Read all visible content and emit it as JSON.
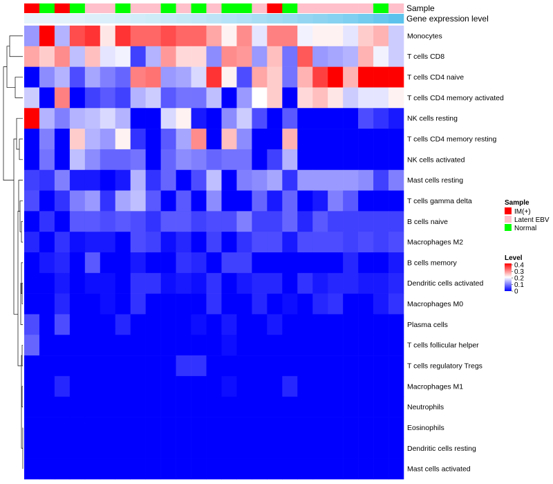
{
  "chart_data": {
    "type": "heatmap",
    "annotation_tracks": {
      "sample_label": "Sample",
      "expression_label": "Gene expression level"
    },
    "sample_annotation": [
      "IM(+)",
      "Normal",
      "IM(+)",
      "Normal",
      "Latent EBV",
      "Latent EBV",
      "Normal",
      "Latent EBV",
      "Latent EBV",
      "Normal",
      "Latent EBV",
      "Normal",
      "Latent EBV",
      "Normal",
      "Normal",
      "Latent EBV",
      "IM(+)",
      "Normal",
      "Latent EBV",
      "Latent EBV",
      "Latent EBV",
      "Latent EBV",
      "Latent EBV",
      "Normal",
      "Latent EBV"
    ],
    "gene_expression_level": [
      0.02,
      0.03,
      0.04,
      0.05,
      0.07,
      0.08,
      0.1,
      0.12,
      0.14,
      0.16,
      0.18,
      0.2,
      0.22,
      0.25,
      0.28,
      0.31,
      0.34,
      0.37,
      0.4,
      0.43,
      0.46,
      0.5,
      0.55,
      0.6,
      0.65
    ],
    "rows": [
      "Monocytes",
      "T cells CD8",
      "T cells CD4 naive",
      "T cells CD4 memory activated",
      "NK cells resting",
      "T cells CD4 memory resting",
      "NK cells activated",
      "Mast cells resting",
      "T cells gamma delta",
      "B cells naive",
      "Macrophages M2",
      "B cells memory",
      "Dendritic cells activated",
      "Macrophages M0",
      "Plasma cells",
      "T cells follicular helper",
      "T cells regulatory  Tregs",
      "Macrophages M1",
      "Neutrophils",
      "Eosinophils",
      "Dendritic cells resting",
      "Mast cells activated"
    ],
    "values": [
      [
        0.12,
        0.4,
        0.14,
        0.34,
        0.36,
        0.22,
        0.36,
        0.32,
        0.32,
        0.34,
        0.32,
        0.32,
        0.27,
        0.21,
        0.29,
        0.18,
        0.3,
        0.3,
        0.19,
        0.21,
        0.21,
        0.18,
        0.24,
        0.26,
        0.16
      ],
      [
        0.27,
        0.24,
        0.29,
        0.15,
        0.25,
        0.18,
        0.19,
        0.05,
        0.14,
        0.28,
        0.23,
        0.23,
        0.11,
        0.29,
        0.28,
        0.12,
        0.25,
        0.09,
        0.33,
        0.12,
        0.13,
        0.14,
        0.26,
        0.19,
        0.16
      ],
      [
        0.0,
        0.11,
        0.14,
        0.06,
        0.13,
        0.1,
        0.08,
        0.3,
        0.31,
        0.12,
        0.13,
        0.17,
        0.36,
        0.21,
        0.06,
        0.27,
        0.24,
        0.09,
        0.26,
        0.35,
        0.4,
        0.26,
        0.4,
        0.4,
        0.4
      ],
      [
        0.16,
        0.0,
        0.3,
        0.0,
        0.05,
        0.07,
        0.05,
        0.14,
        0.16,
        0.07,
        0.09,
        0.09,
        0.15,
        0.0,
        0.12,
        0.2,
        0.24,
        0.0,
        0.23,
        0.25,
        0.22,
        0.16,
        0.18,
        0.18,
        0.21
      ],
      [
        0.4,
        0.14,
        0.1,
        0.14,
        0.15,
        0.17,
        0.14,
        0.0,
        0.0,
        0.17,
        0.21,
        0.02,
        0.0,
        0.11,
        0.16,
        0.06,
        0.0,
        0.07,
        0.0,
        0.0,
        0.0,
        0.0,
        0.06,
        0.04,
        0.02
      ],
      [
        0.0,
        0.1,
        0.0,
        0.24,
        0.14,
        0.12,
        0.21,
        0.04,
        0.0,
        0.07,
        0.13,
        0.29,
        0.0,
        0.25,
        0.11,
        0.0,
        0.0,
        0.26,
        0.0,
        0.0,
        0.0,
        0.0,
        0.0,
        0.0,
        0.0
      ],
      [
        0.0,
        0.09,
        0.0,
        0.15,
        0.11,
        0.08,
        0.08,
        0.09,
        0.0,
        0.08,
        0.11,
        0.1,
        0.08,
        0.09,
        0.09,
        0.0,
        0.05,
        0.14,
        0.0,
        0.0,
        0.0,
        0.0,
        0.0,
        0.0,
        0.0
      ],
      [
        0.05,
        0.04,
        0.1,
        0.02,
        0.02,
        0.0,
        0.02,
        0.14,
        0.04,
        0.08,
        0.0,
        0.06,
        0.15,
        0.0,
        0.1,
        0.11,
        0.13,
        0.04,
        0.12,
        0.12,
        0.12,
        0.12,
        0.11,
        0.05,
        0.1
      ],
      [
        0.06,
        0.0,
        0.04,
        0.1,
        0.12,
        0.04,
        0.13,
        0.15,
        0.07,
        0.0,
        0.07,
        0.0,
        0.11,
        0.0,
        0.0,
        0.08,
        0.02,
        0.08,
        0.0,
        0.02,
        0.1,
        0.07,
        0.0,
        0.0,
        0.0
      ],
      [
        0.0,
        0.04,
        0.0,
        0.07,
        0.07,
        0.06,
        0.07,
        0.06,
        0.04,
        0.07,
        0.07,
        0.05,
        0.06,
        0.06,
        0.1,
        0.05,
        0.05,
        0.08,
        0.03,
        0.07,
        0.05,
        0.05,
        0.05,
        0.05,
        0.05
      ],
      [
        0.03,
        0.0,
        0.04,
        0.01,
        0.02,
        0.02,
        0.0,
        0.06,
        0.05,
        0.01,
        0.03,
        0.0,
        0.05,
        0.0,
        0.04,
        0.06,
        0.06,
        0.02,
        0.06,
        0.06,
        0.06,
        0.05,
        0.06,
        0.05,
        0.06
      ],
      [
        0.0,
        0.02,
        0.03,
        0.0,
        0.07,
        0.0,
        0.0,
        0.02,
        0.0,
        0.0,
        0.04,
        0.03,
        0.0,
        0.05,
        0.05,
        0.0,
        0.0,
        0.0,
        0.0,
        0.0,
        0.0,
        0.03,
        0.0,
        0.0,
        0.02
      ],
      [
        0.0,
        0.0,
        0.02,
        0.0,
        0.01,
        0.01,
        0.0,
        0.04,
        0.04,
        0.01,
        0.02,
        0.01,
        0.04,
        0.0,
        0.02,
        0.03,
        0.03,
        0.0,
        0.04,
        0.02,
        0.03,
        0.03,
        0.02,
        0.02,
        0.03
      ],
      [
        0.0,
        0.0,
        0.03,
        0.0,
        0.0,
        0.01,
        0.0,
        0.04,
        0.0,
        0.0,
        0.0,
        0.0,
        0.04,
        0.0,
        0.0,
        0.03,
        0.0,
        0.01,
        0.0,
        0.03,
        0.04,
        0.0,
        0.0,
        0.02,
        0.04
      ],
      [
        0.06,
        0.0,
        0.06,
        0.0,
        0.0,
        0.0,
        0.03,
        0.0,
        0.0,
        0.0,
        0.0,
        0.01,
        0.0,
        0.02,
        0.0,
        0.0,
        0.02,
        0.0,
        0.0,
        0.0,
        0.0,
        0.0,
        0.0,
        0.0,
        0.0
      ],
      [
        0.08,
        0.0,
        0.0,
        0.0,
        0.0,
        0.0,
        0.0,
        0.0,
        0.0,
        0.0,
        0.0,
        0.0,
        0.0,
        0.01,
        0.0,
        0.0,
        0.0,
        0.0,
        0.0,
        0.0,
        0.0,
        0.0,
        0.0,
        0.0,
        0.0
      ],
      [
        0.0,
        0.0,
        0.0,
        0.0,
        0.0,
        0.0,
        0.0,
        0.0,
        0.0,
        0.0,
        0.04,
        0.04,
        0.0,
        0.0,
        0.0,
        0.0,
        0.0,
        0.0,
        0.0,
        0.0,
        0.0,
        0.0,
        0.0,
        0.0,
        0.0
      ],
      [
        0.0,
        0.0,
        0.03,
        0.0,
        0.0,
        0.0,
        0.0,
        0.0,
        0.0,
        0.0,
        0.0,
        0.0,
        0.0,
        0.01,
        0.0,
        0.0,
        0.0,
        0.03,
        0.0,
        0.0,
        0.0,
        0.0,
        0.0,
        0.0,
        0.0
      ],
      [
        0,
        0,
        0,
        0,
        0,
        0,
        0,
        0,
        0,
        0,
        0,
        0,
        0,
        0,
        0,
        0,
        0,
        0,
        0,
        0,
        0,
        0,
        0,
        0,
        0
      ],
      [
        0,
        0,
        0,
        0,
        0,
        0,
        0,
        0,
        0,
        0,
        0,
        0,
        0,
        0,
        0,
        0,
        0,
        0,
        0,
        0,
        0,
        0,
        0,
        0,
        0
      ],
      [
        0,
        0,
        0,
        0,
        0,
        0,
        0,
        0,
        0,
        0,
        0,
        0,
        0,
        0,
        0,
        0,
        0,
        0,
        0,
        0,
        0,
        0,
        0,
        0,
        0
      ],
      [
        0,
        0,
        0,
        0,
        0,
        0,
        0,
        0,
        0,
        0,
        0,
        0,
        0,
        0,
        0,
        0,
        0,
        0,
        0,
        0,
        0,
        0,
        0,
        0,
        0
      ]
    ],
    "color_scale": {
      "min": 0,
      "mid": 0.2,
      "max": 0.4,
      "low": "#0000FF",
      "mid_color": "#FFFFFF",
      "high": "#FF0000"
    },
    "legend": {
      "sample_title": "Sample",
      "sample_items": [
        {
          "label": "IM(+)",
          "color": "#FF0000"
        },
        {
          "label": "Latent EBV",
          "color": "#FFC0CB"
        },
        {
          "label": "Normal",
          "color": "#00FF00"
        }
      ],
      "level_title": "Level",
      "level_ticks": [
        "0.4",
        "0.3",
        "0.2",
        "0.1",
        "0"
      ],
      "placement": "right"
    },
    "expression_track_colors": {
      "low": "#E8F4FB",
      "high": "#5DC3EC"
    },
    "dendrogram": "row-clustering"
  }
}
